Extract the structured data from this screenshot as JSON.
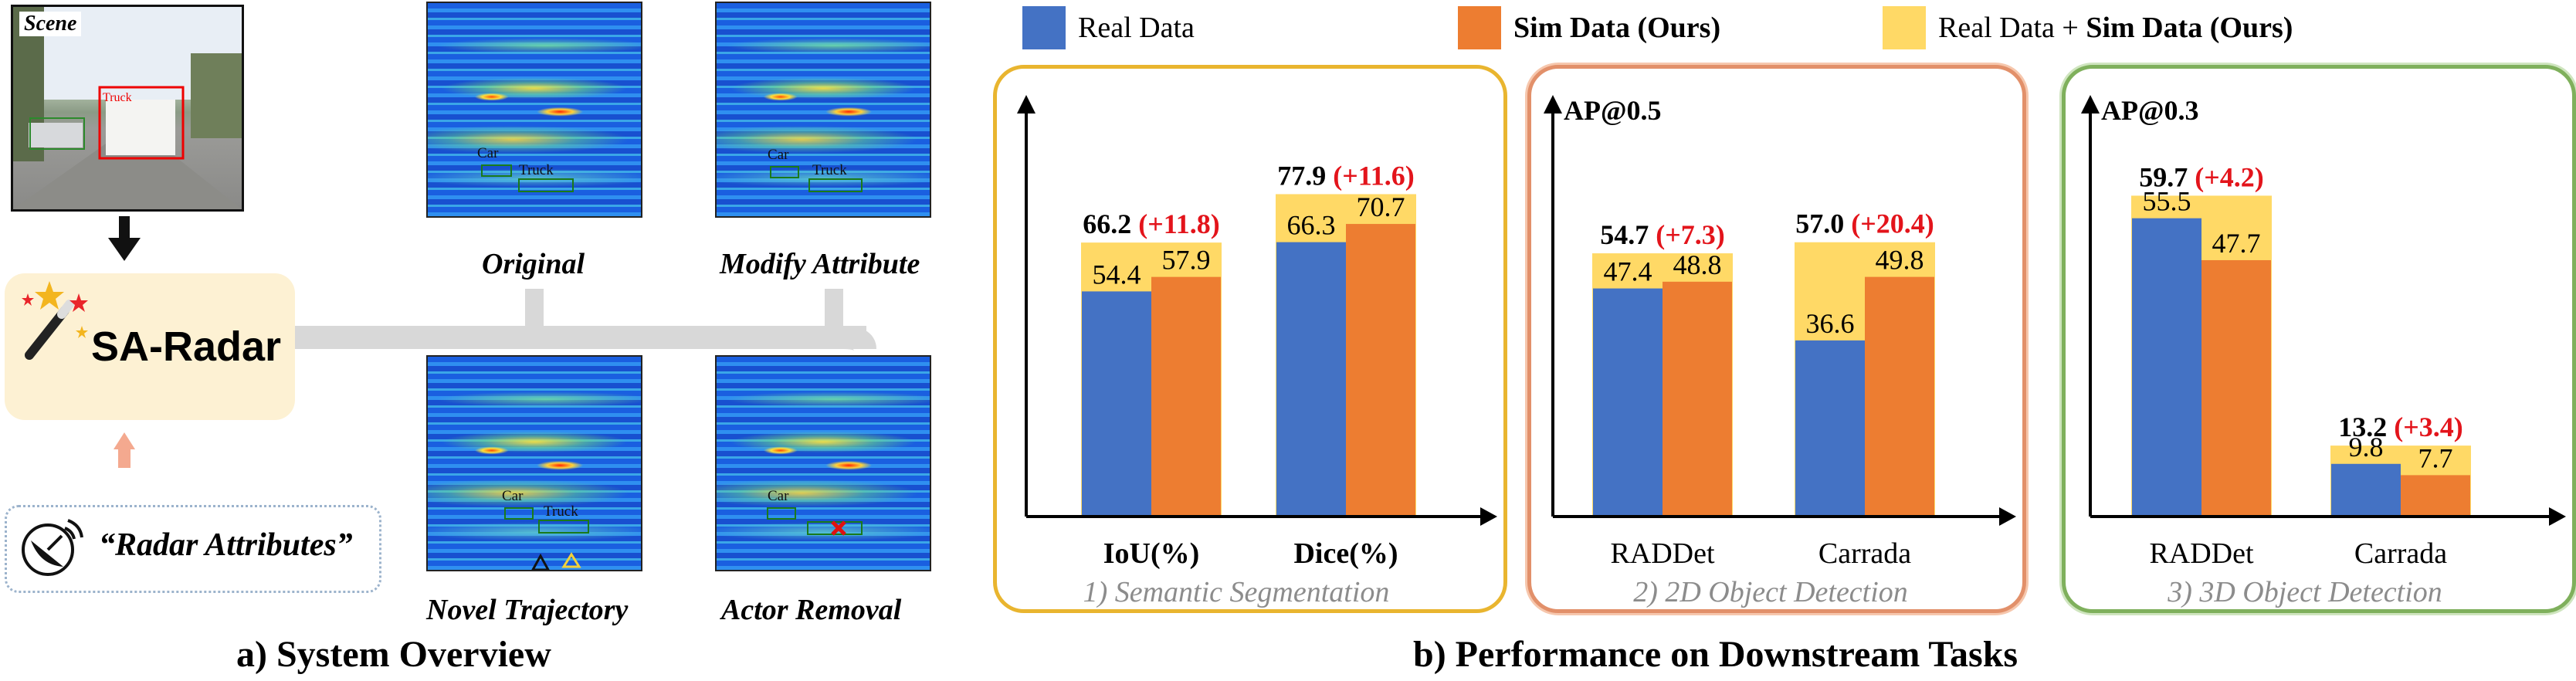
{
  "colors": {
    "real": "#4472C4",
    "sim": "#ED7D31",
    "combined": "#FFD966",
    "delta": "#E3141B",
    "panel1_border": "#E9B52F",
    "panel2_border": "#E2906A",
    "panel3_border": "#7FB05C",
    "subtitle": "#8C8C8C"
  },
  "overview": {
    "scene_label": "Scene",
    "scene_box_label": "Truck",
    "system_name": "SA-Radar",
    "attributes_text": "“Radar Attributes”",
    "title": "a) System Overview",
    "maps": [
      {
        "caption": "Original",
        "labels": [
          "Car",
          "Truck"
        ]
      },
      {
        "caption": "Modify Attribute",
        "labels": [
          "Car",
          "Truck"
        ]
      },
      {
        "caption": "Novel Trajectory",
        "labels": [
          "Car",
          "Truck"
        ]
      },
      {
        "caption": "Actor Removal",
        "labels": [
          "Car"
        ]
      }
    ]
  },
  "performance": {
    "title": "b) Performance on Downstream Tasks",
    "legend": {
      "real": "Real Data",
      "sim": "Sim Data (Ours)",
      "combined_prefix": "Real Data + ",
      "combined_bold": "Sim Data (Ours)"
    }
  },
  "chart_data": [
    {
      "type": "bar",
      "title": "1) Semantic Segmentation",
      "ylabel": "",
      "ylim": [
        0,
        100
      ],
      "categories": [
        "IoU(%)",
        "Dice(%)"
      ],
      "series": [
        {
          "name": "Real Data",
          "values": [
            54.4,
            66.3
          ]
        },
        {
          "name": "Sim Data (Ours)",
          "values": [
            57.9,
            70.7
          ]
        },
        {
          "name": "Real Data + Sim Data (Ours)",
          "values": [
            66.2,
            77.9
          ]
        }
      ],
      "combined_labels": [
        "66.2",
        "77.9"
      ],
      "gain_labels": [
        "(+11.8)",
        "(+11.6)"
      ]
    },
    {
      "type": "bar",
      "title": "2) 2D Object Detection",
      "ylabel": "AP@0.5",
      "ylim": [
        0,
        86
      ],
      "categories": [
        "RADDet",
        "Carrada"
      ],
      "series": [
        {
          "name": "Real Data",
          "values": [
            47.4,
            36.6
          ]
        },
        {
          "name": "Sim Data (Ours)",
          "values": [
            48.8,
            49.8
          ]
        },
        {
          "name": "Real Data + Sim Data (Ours)",
          "values": [
            54.7,
            57.0
          ]
        }
      ],
      "combined_labels": [
        "54.7",
        "57.0"
      ],
      "gain_labels": [
        "(+7.3)",
        "(+20.4)"
      ]
    },
    {
      "type": "bar",
      "title": "3) 3D Object Detection",
      "ylabel": "AP@0.3",
      "ylim": [
        0,
        77
      ],
      "categories": [
        "RADDet",
        "Carrada"
      ],
      "series": [
        {
          "name": "Real Data",
          "values": [
            55.5,
            9.8
          ]
        },
        {
          "name": "Sim Data (Ours)",
          "values": [
            47.7,
            7.7
          ]
        },
        {
          "name": "Real Data + Sim Data (Ours)",
          "values": [
            59.7,
            13.2
          ]
        }
      ],
      "combined_labels": [
        "59.7",
        "13.2"
      ],
      "gain_labels": [
        "(+4.2)",
        "(+3.4)"
      ]
    }
  ]
}
